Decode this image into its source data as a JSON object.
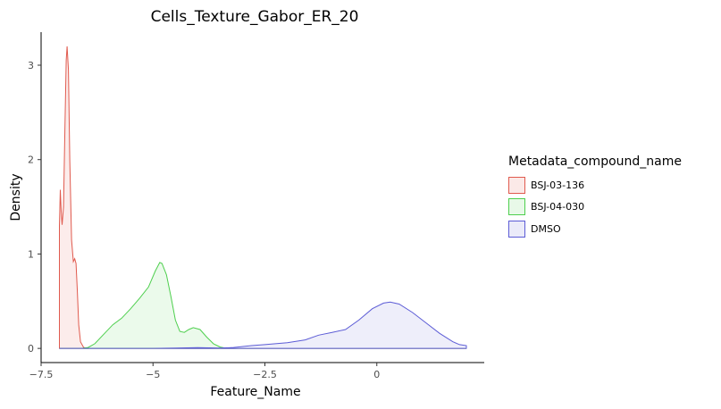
{
  "chart_data": {
    "type": "area",
    "title": "Cells_Texture_Gabor_ER_20",
    "xlabel": "Feature_Name",
    "ylabel": "Density",
    "xlim": [
      -7.5,
      2.4
    ],
    "ylim": [
      -0.15,
      3.35
    ],
    "x_ticks": [
      -7.5,
      -5,
      -2.5,
      0
    ],
    "x_tick_labels": [
      "−7.5",
      "−5",
      "−2.5",
      "0"
    ],
    "y_ticks": [
      0,
      1,
      2,
      3
    ],
    "y_tick_labels": [
      "0",
      "1",
      "2",
      "3"
    ],
    "grid": false,
    "legend": {
      "title": "Metadata_compound_name",
      "position": "right"
    },
    "series": [
      {
        "name": "BSJ-03-136",
        "color": "#e05a4e",
        "fill": "#fbe9e7",
        "points": [
          [
            -7.09,
            0
          ],
          [
            -7.09,
            1.3
          ],
          [
            -7.07,
            1.68
          ],
          [
            -7.05,
            1.45
          ],
          [
            -7.03,
            1.31
          ],
          [
            -7.0,
            1.5
          ],
          [
            -6.97,
            2.3
          ],
          [
            -6.94,
            3.05
          ],
          [
            -6.92,
            3.2
          ],
          [
            -6.89,
            2.95
          ],
          [
            -6.86,
            2.0
          ],
          [
            -6.82,
            1.15
          ],
          [
            -6.78,
            0.92
          ],
          [
            -6.75,
            0.95
          ],
          [
            -6.72,
            0.9
          ],
          [
            -6.69,
            0.6
          ],
          [
            -6.66,
            0.25
          ],
          [
            -6.62,
            0.07
          ],
          [
            -6.55,
            0.01
          ],
          [
            -6.45,
            0.0
          ],
          [
            2.0,
            0.0
          ]
        ]
      },
      {
        "name": "BSJ-04-030",
        "color": "#4ecf4e",
        "fill": "#e8f9e8",
        "points": [
          [
            -7.09,
            0.0
          ],
          [
            -6.6,
            0.0
          ],
          [
            -6.45,
            0.01
          ],
          [
            -6.3,
            0.05
          ],
          [
            -6.1,
            0.15
          ],
          [
            -5.9,
            0.25
          ],
          [
            -5.7,
            0.32
          ],
          [
            -5.5,
            0.42
          ],
          [
            -5.3,
            0.53
          ],
          [
            -5.1,
            0.65
          ],
          [
            -4.95,
            0.82
          ],
          [
            -4.85,
            0.91
          ],
          [
            -4.8,
            0.9
          ],
          [
            -4.7,
            0.78
          ],
          [
            -4.6,
            0.55
          ],
          [
            -4.5,
            0.3
          ],
          [
            -4.4,
            0.18
          ],
          [
            -4.3,
            0.17
          ],
          [
            -4.2,
            0.2
          ],
          [
            -4.1,
            0.22
          ],
          [
            -3.95,
            0.2
          ],
          [
            -3.8,
            0.12
          ],
          [
            -3.65,
            0.05
          ],
          [
            -3.5,
            0.015
          ],
          [
            -3.35,
            0.0
          ],
          [
            2.0,
            0.0
          ]
        ]
      },
      {
        "name": "DMSO",
        "color": "#5c5cd6",
        "fill": "#ebebf9",
        "points": [
          [
            -7.09,
            0.0
          ],
          [
            -5.0,
            0.0
          ],
          [
            -4.5,
            0.003
          ],
          [
            -4.0,
            0.008
          ],
          [
            -3.5,
            0.003
          ],
          [
            -3.2,
            0.01
          ],
          [
            -2.8,
            0.03
          ],
          [
            -2.5,
            0.04
          ],
          [
            -2.0,
            0.06
          ],
          [
            -1.6,
            0.09
          ],
          [
            -1.3,
            0.14
          ],
          [
            -1.0,
            0.17
          ],
          [
            -0.7,
            0.2
          ],
          [
            -0.4,
            0.3
          ],
          [
            -0.1,
            0.42
          ],
          [
            0.15,
            0.48
          ],
          [
            0.3,
            0.49
          ],
          [
            0.5,
            0.47
          ],
          [
            0.8,
            0.38
          ],
          [
            1.1,
            0.27
          ],
          [
            1.4,
            0.16
          ],
          [
            1.7,
            0.07
          ],
          [
            1.85,
            0.04
          ],
          [
            2.0,
            0.03
          ],
          [
            2.0,
            0.0
          ]
        ]
      }
    ]
  }
}
